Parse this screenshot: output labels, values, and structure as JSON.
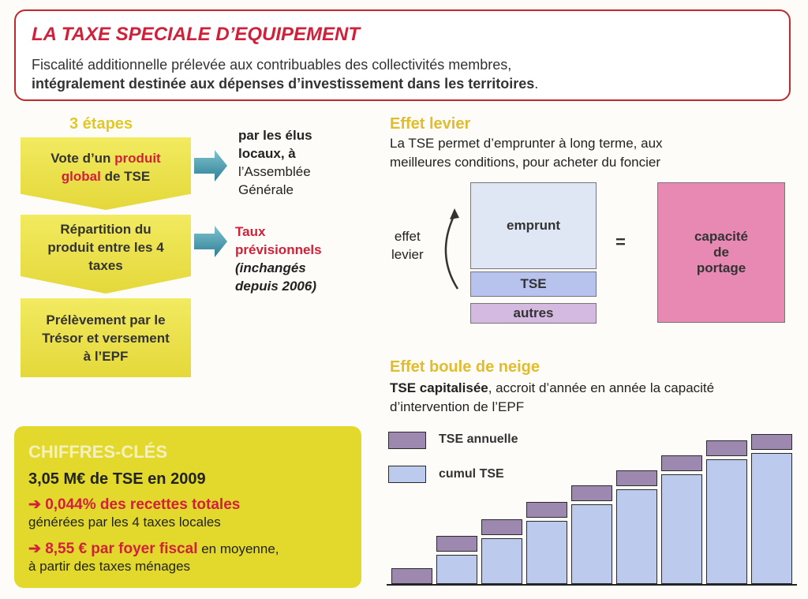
{
  "header": {
    "title": "LA TAXE SPECIALE D’EQUIPEMENT",
    "line1": "Fiscalité additionnelle prélevée aux contribuables des collectivités membres,",
    "line2_bold": "intégralement destinée aux dépenses d’investissement dans les territoires",
    "line2_end": "."
  },
  "steps": {
    "title": "3 étapes",
    "step1": {
      "a": "Vote d’un ",
      "b": "produit",
      "c": "global",
      "d": " de TSE"
    },
    "step1_note": {
      "l1": "par les élus",
      "l2": "locaux, à",
      "l3": "l’Assemblée",
      "l4": "Générale"
    },
    "step2": {
      "l1": "Répartition du",
      "l2": "produit entre les  4",
      "l3": "taxes"
    },
    "step2_note": {
      "l1": "Taux",
      "l2": "prévisionnels",
      "l3": "(inchangés",
      "l4": "depuis 2006)"
    },
    "step3": {
      "l1": "Prélèvement par le",
      "l2": "Trésor et versement",
      "l3": "à l’EPF"
    }
  },
  "levier": {
    "title": "Effet levier",
    "text1": "La TSE permet d’emprunter à long terme, aux",
    "text2": "meilleures conditions, pour acheter du foncier",
    "arrow_label1": "effet",
    "arrow_label2": "levier",
    "box_emprunt": "emprunt",
    "box_tse": "TSE",
    "box_autres": "autres",
    "equals": "=",
    "box_capacite": {
      "l1": "capacité",
      "l2": "de",
      "l3": "portage"
    },
    "colors": {
      "emprunt": "#dfe7f5",
      "tse": "#b7c3ec",
      "autres": "#d4b9e0",
      "capacite": "#e889b4"
    }
  },
  "boule": {
    "title": "Effet boule de neige",
    "text1_bold": "TSE capitalisée",
    "text1": ", accroit d’année en année la capacité",
    "text2": "d’intervention de l’EPF",
    "legend_annual": "TSE annuelle",
    "legend_cumul": "cumul TSE",
    "colors": {
      "annual": "#9d89b0",
      "cumul": "#bccaee"
    },
    "cumul_levels": [
      0.0,
      0.22,
      0.35,
      0.48,
      0.61,
      0.72,
      0.84,
      0.95,
      1.0
    ],
    "annual_count": 9
  },
  "cles": {
    "title": "CHIFFRES-CLÉS",
    "big": "3,05 M€ de TSE en 2009",
    "item1_red": "➔ 0,044% des recettes totales",
    "item1_txt": "générées par les 4 taxes locales",
    "item2_red": "➔ 8,55 € par foyer fiscal",
    "item2_txt_inline": " en moyenne,",
    "item2_txt2": "à partir des taxes ménages"
  }
}
